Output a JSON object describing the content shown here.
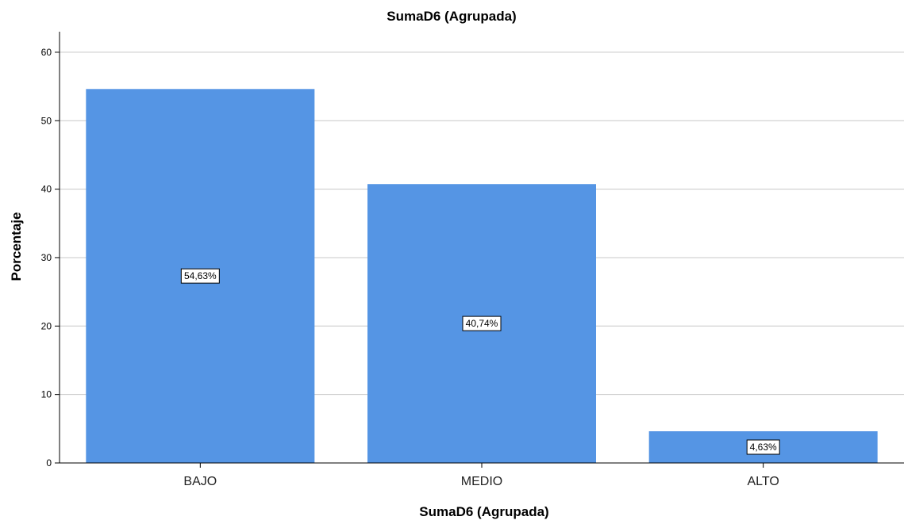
{
  "chart_data": {
    "type": "bar",
    "title": "SumaD6 (Agrupada)",
    "xlabel": "SumaD6 (Agrupada)",
    "ylabel": "Porcentaje",
    "categories": [
      "BAJO",
      "MEDIO",
      "ALTO"
    ],
    "values": [
      54.63,
      40.74,
      4.63
    ],
    "data_labels": [
      "54,63%",
      "40,74%",
      "4,63%"
    ],
    "ylim": [
      0,
      63
    ],
    "yticks": [
      0,
      10,
      20,
      30,
      40,
      50,
      60
    ],
    "grid": true,
    "legend": "none",
    "colors": {
      "bar": "#5595e4",
      "grid": "#c8c8c8",
      "axis": "#000000"
    }
  }
}
